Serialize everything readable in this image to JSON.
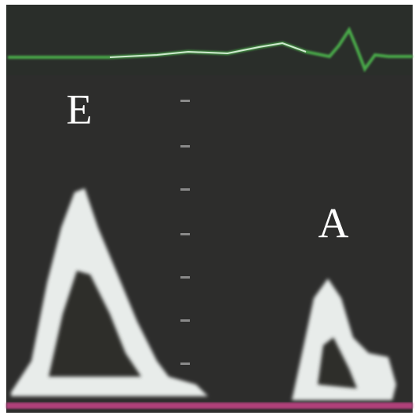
{
  "labels": {
    "e_wave": "E",
    "a_wave": "A"
  }
}
